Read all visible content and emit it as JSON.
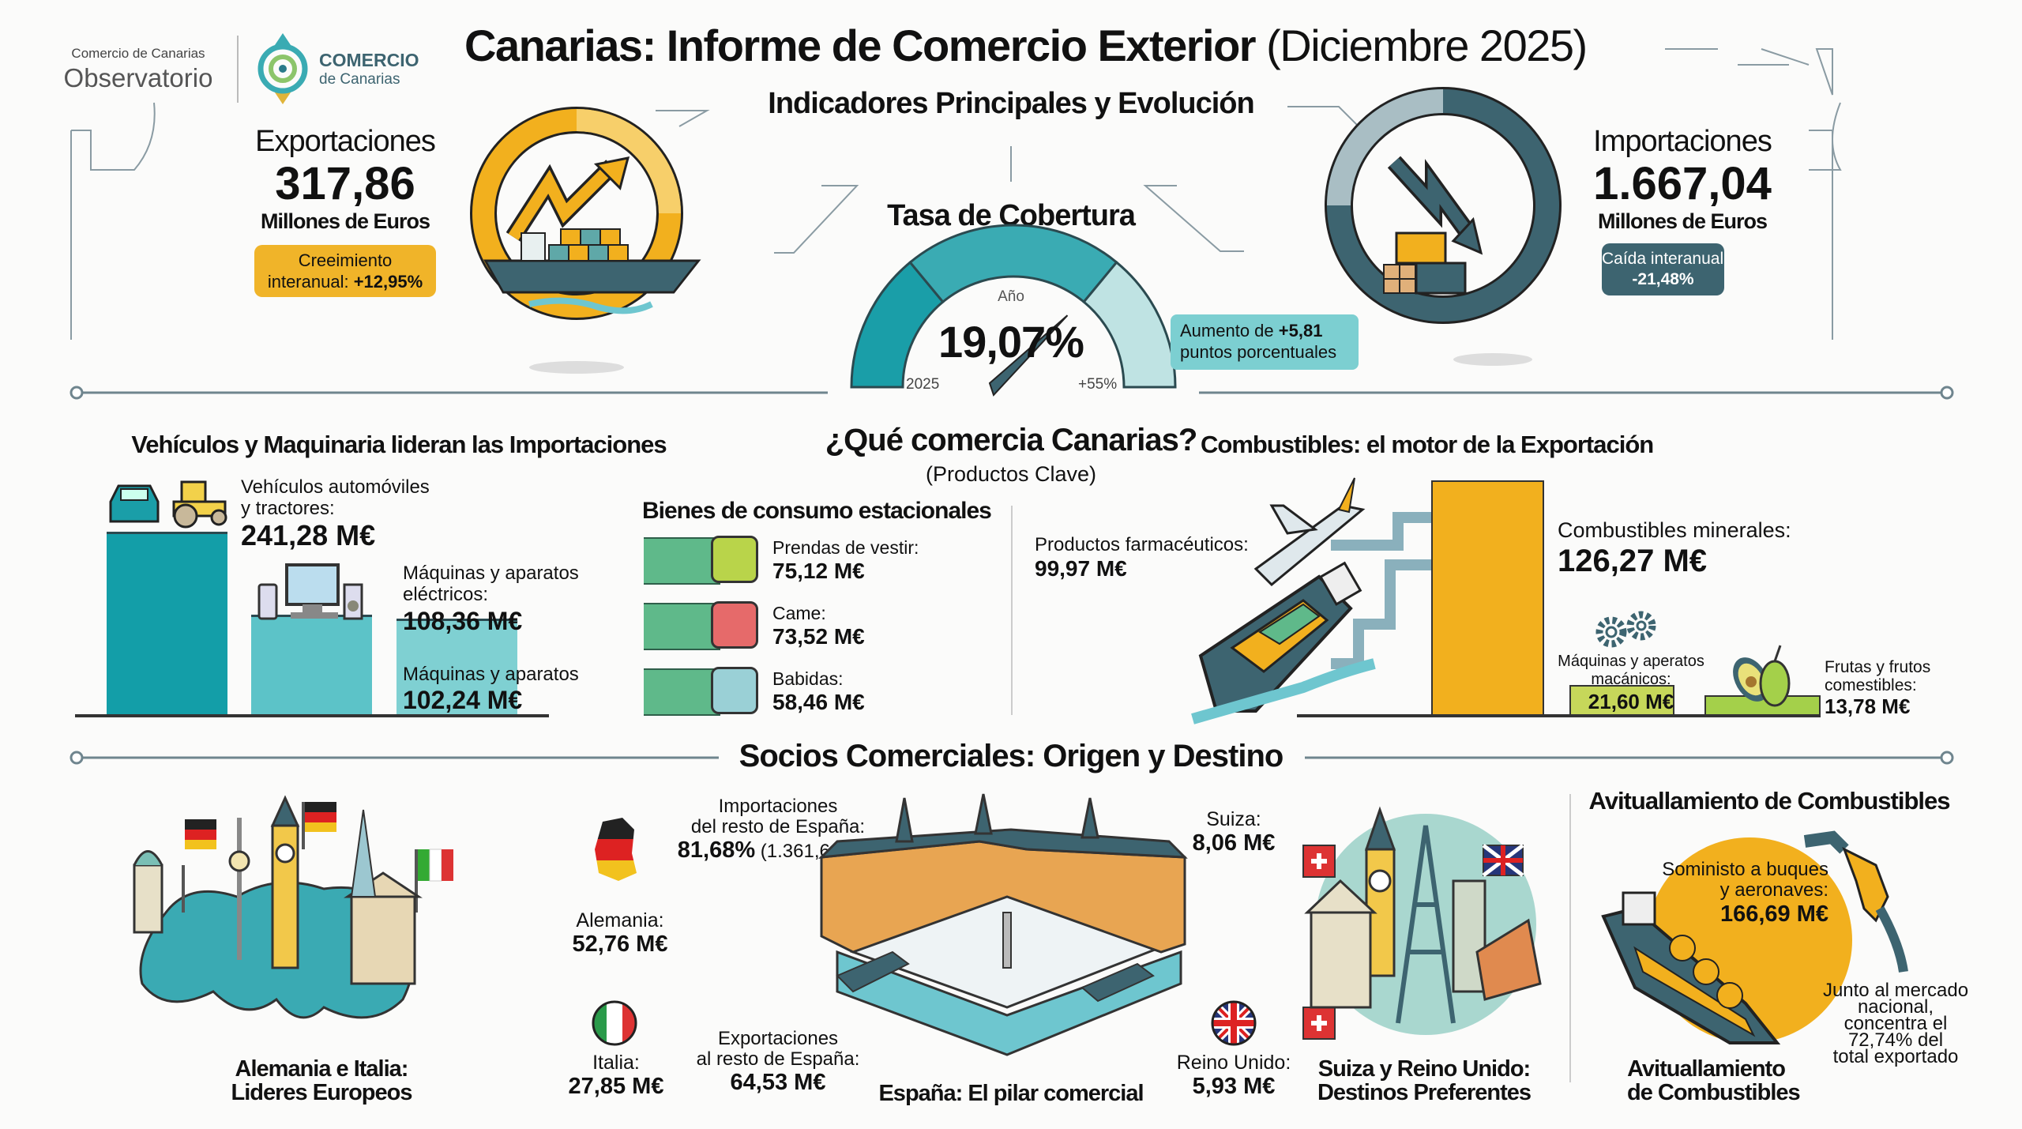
{
  "header": {
    "title_bold": "Canarias: Informe de Comercio Exterior",
    "title_light": "(Diciembre 2025)",
    "logo1_small": "Comercio de Canarias",
    "logo1_big": "Observatorio",
    "logo2_big": "COMERCIO",
    "logo2_small": "de Canarias"
  },
  "indicators": {
    "heading": "Indicadores Principales y Evolución",
    "exports": {
      "label": "Exportaciones",
      "value": "317,86",
      "unit": "Millones de Euros",
      "badge_line1": "Creeimiento",
      "badge_line2_prefix": "interanual:",
      "badge_value": "+12,95%"
    },
    "imports": {
      "label": "Importaciones",
      "value": "1.667,04",
      "unit": "Millones de Euros",
      "badge_line1": "Caída interanual:",
      "badge_value": "-21,48%"
    },
    "coverage": {
      "heading": "Tasa de Cobertura",
      "top_label": "Año",
      "value": "19,07%",
      "min_label": "2025",
      "max_label": "+55%",
      "fraction": 0.3467,
      "callout_prefix": "Aumento de",
      "callout_value": "+5,81",
      "callout_line2": "puntos porcentuales"
    }
  },
  "products": {
    "heading": "¿Qué comercia Canarias?",
    "subheading": "(Productos Clave)",
    "imports_block": {
      "heading": "Vehículos y Maquinaria lideran las Importaciones",
      "items": [
        {
          "label1": "Vehículos automóviles",
          "label2": "y tractores:",
          "value": "241,28 M€",
          "amount": 241.28
        },
        {
          "label1": "Máquinas y aparatos",
          "label2": "eléctricos:",
          "value": "108,36 M€",
          "amount": 108.36
        },
        {
          "label1": "Máquinas y aparatos",
          "label2": "",
          "value": "102,24 M€",
          "amount": 102.24
        }
      ]
    },
    "consumer": {
      "heading": "Bienes de consumo estacionales",
      "items": [
        {
          "label": "Prendas de vestir:",
          "value": "75,12 M€"
        },
        {
          "label": "Came:",
          "value": "73,52 M€"
        },
        {
          "label": "Babidas:",
          "value": "58,46 M€"
        }
      ]
    },
    "pharma": {
      "label": "Productos farmacéuticos:",
      "value": "99,97 M€"
    },
    "exports_block": {
      "heading": "Combustibles: el motor de la Exportación",
      "items": [
        {
          "label1": "Combustibles minerales:",
          "label2": "",
          "value": "126,27 M€",
          "amount": 126.27
        },
        {
          "label1": "Máquinas y aperatos",
          "label2": "macánicos:",
          "value": "21,60 M€",
          "amount": 21.6
        },
        {
          "label1": "Frutas y frutos",
          "label2": "comestibles:",
          "value": "13,78 M€",
          "amount": 13.78
        }
      ]
    }
  },
  "partners": {
    "heading": "Socios Comerciales: Origen y Destino",
    "europe_caption1": "Alemania e Italia:",
    "europe_caption2": "Lideres Europeos",
    "germany": {
      "label": "Alemania:",
      "value": "52,76 M€"
    },
    "italy": {
      "label": "Italia:",
      "value": "27,85 M€"
    },
    "spain_imports": {
      "line1": "Importaciones",
      "line2": "del resto de España:",
      "pct": "81,68%",
      "amount": "(1.361,61 M€)"
    },
    "spain_exports": {
      "line1": "Exportaciones",
      "line2": "al resto de España:",
      "value": "64,53 M€"
    },
    "spain_caption": "España: El pilar comercial",
    "switzerland": {
      "label": "Suiza:",
      "value": "8,06 M€"
    },
    "uk": {
      "label": "Reino Unido:",
      "value": "5,93 M€"
    },
    "dest_caption1": "Suiza y Reino Unido:",
    "dest_caption2": "Destinos Preferentes"
  },
  "bunkering": {
    "heading": "Avituallamiento de Combustibles",
    "circle_line1": "Soministo a buques",
    "circle_line2": "y aeronaves:",
    "circle_value": "166,69 M€",
    "caption1": "Avituallamiento",
    "caption2": "de Combustibles",
    "note": [
      "Junto al mercado",
      "nacional,",
      "concentra el",
      "72,74% del",
      "total exportado"
    ]
  },
  "colors": {
    "yellow": "#f2b01e",
    "teal": "#1a9ea8",
    "dark_teal": "#3d6470",
    "green": "#5fb98a"
  }
}
